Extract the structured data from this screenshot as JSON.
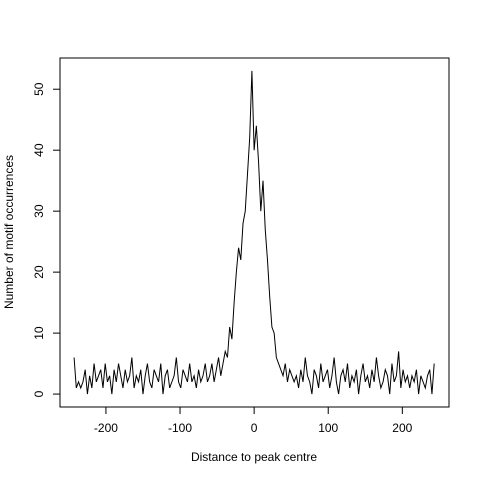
{
  "chart_data": {
    "type": "line",
    "xlabel": "Distance to peak centre",
    "ylabel": "Number of motif occurrences",
    "color": "#000000",
    "xlim": [
      -262,
      263
    ],
    "ylim": [
      -2.12,
      55.12
    ],
    "xticks": [
      -200,
      -100,
      0,
      100,
      200
    ],
    "yticks": [
      0,
      10,
      20,
      30,
      40,
      50
    ],
    "x": [
      -243,
      -240,
      -237,
      -234,
      -231,
      -228,
      -225,
      -222,
      -219,
      -216,
      -213,
      -210,
      -207,
      -204,
      -201,
      -198,
      -195,
      -192,
      -189,
      -186,
      -183,
      -180,
      -177,
      -174,
      -171,
      -168,
      -165,
      -162,
      -159,
      -156,
      -153,
      -150,
      -147,
      -144,
      -141,
      -138,
      -135,
      -132,
      -129,
      -126,
      -123,
      -120,
      -117,
      -114,
      -111,
      -108,
      -105,
      -102,
      -99,
      -96,
      -93,
      -90,
      -87,
      -84,
      -81,
      -78,
      -75,
      -72,
      -69,
      -66,
      -63,
      -60,
      -57,
      -54,
      -51,
      -48,
      -45,
      -42,
      -39,
      -36,
      -33,
      -30,
      -27,
      -24,
      -21,
      -18,
      -15,
      -12,
      -9,
      -6,
      -3,
      0,
      3,
      6,
      9,
      12,
      15,
      18,
      21,
      24,
      27,
      30,
      33,
      36,
      39,
      42,
      45,
      48,
      51,
      54,
      57,
      60,
      63,
      66,
      69,
      72,
      75,
      78,
      81,
      84,
      87,
      90,
      93,
      96,
      99,
      102,
      105,
      108,
      111,
      114,
      117,
      120,
      123,
      126,
      129,
      132,
      135,
      138,
      141,
      144,
      147,
      150,
      153,
      156,
      159,
      162,
      165,
      168,
      171,
      174,
      177,
      180,
      183,
      186,
      189,
      192,
      195,
      198,
      201,
      204,
      207,
      210,
      213,
      216,
      219,
      222,
      225,
      228,
      231,
      234,
      237,
      240,
      243
    ],
    "values": [
      6,
      1,
      2,
      1,
      2,
      4,
      0,
      3,
      1,
      5,
      2,
      3,
      4,
      1,
      5,
      2,
      3,
      0,
      4,
      2,
      5,
      3,
      1,
      4,
      2,
      3,
      6,
      1,
      3,
      2,
      4,
      0,
      3,
      5,
      2,
      1,
      4,
      3,
      2,
      5,
      0,
      3,
      4,
      1,
      2,
      3,
      6,
      2,
      1,
      4,
      3,
      2,
      5,
      2,
      3,
      1,
      4,
      2,
      3,
      5,
      2,
      3,
      5,
      2,
      4,
      6,
      3,
      5,
      7,
      6,
      11,
      9,
      15,
      20,
      24,
      22,
      28,
      30,
      36,
      42,
      53,
      40,
      44,
      38,
      30,
      35,
      27,
      22,
      16,
      11,
      10,
      6,
      5,
      4,
      3,
      5,
      2,
      4,
      3,
      2,
      3,
      1,
      4,
      2,
      6,
      3,
      2,
      0,
      4,
      3,
      1,
      5,
      2,
      3,
      4,
      1,
      3,
      6,
      2,
      0,
      3,
      4,
      2,
      5,
      1,
      3,
      2,
      4,
      0,
      3,
      5,
      2,
      3,
      1,
      4,
      2,
      6,
      3,
      1,
      2,
      4,
      3,
      0,
      5,
      2,
      3,
      7,
      1,
      4,
      2,
      3,
      1,
      3,
      2,
      4,
      0,
      3,
      2,
      1,
      3,
      4,
      0,
      5
    ]
  }
}
